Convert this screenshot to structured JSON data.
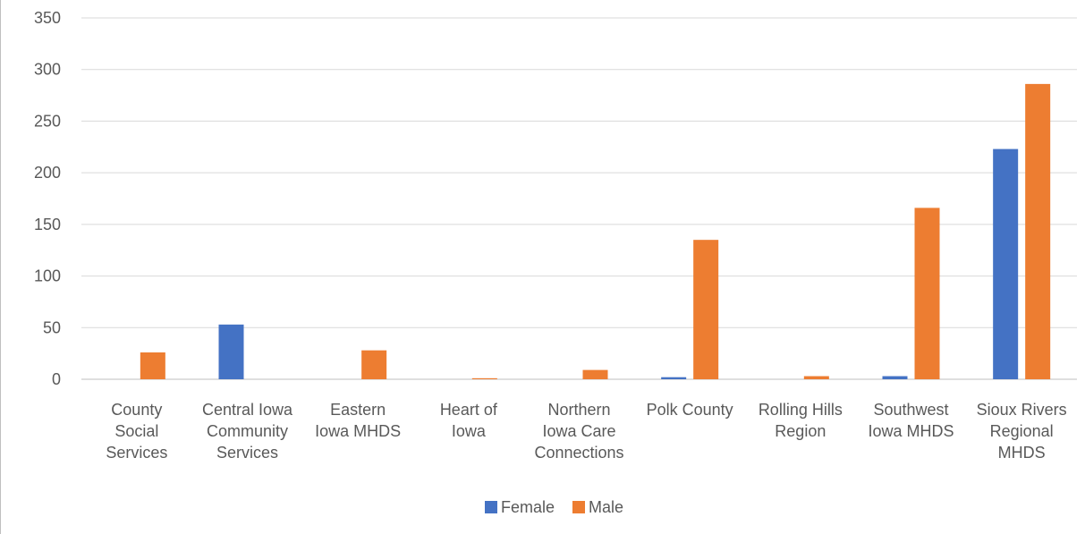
{
  "chart_data": {
    "type": "bar",
    "categories": [
      [
        "County",
        "Social",
        "Services"
      ],
      [
        "Central Iowa",
        "Community",
        "Services"
      ],
      [
        "Eastern",
        "Iowa MHDS"
      ],
      [
        "Heart of",
        "Iowa"
      ],
      [
        "Northern",
        "Iowa Care",
        "Connections"
      ],
      [
        "Polk County"
      ],
      [
        "Rolling Hills",
        "Region"
      ],
      [
        "Southwest",
        "Iowa MHDS"
      ],
      [
        "Sioux Rivers",
        "Regional",
        "MHDS"
      ]
    ],
    "series": [
      {
        "name": "Female",
        "color": "#4472c4",
        "values": [
          0,
          53,
          0,
          0,
          0,
          2,
          0,
          3,
          223
        ]
      },
      {
        "name": "Male",
        "color": "#ed7d31",
        "values": [
          26,
          0,
          28,
          1,
          9,
          135,
          3,
          166,
          286
        ]
      }
    ],
    "ylim": [
      0,
      350
    ],
    "yticks": [
      0,
      50,
      100,
      150,
      200,
      250,
      300,
      350
    ],
    "grid": true,
    "legend": "bottom"
  }
}
